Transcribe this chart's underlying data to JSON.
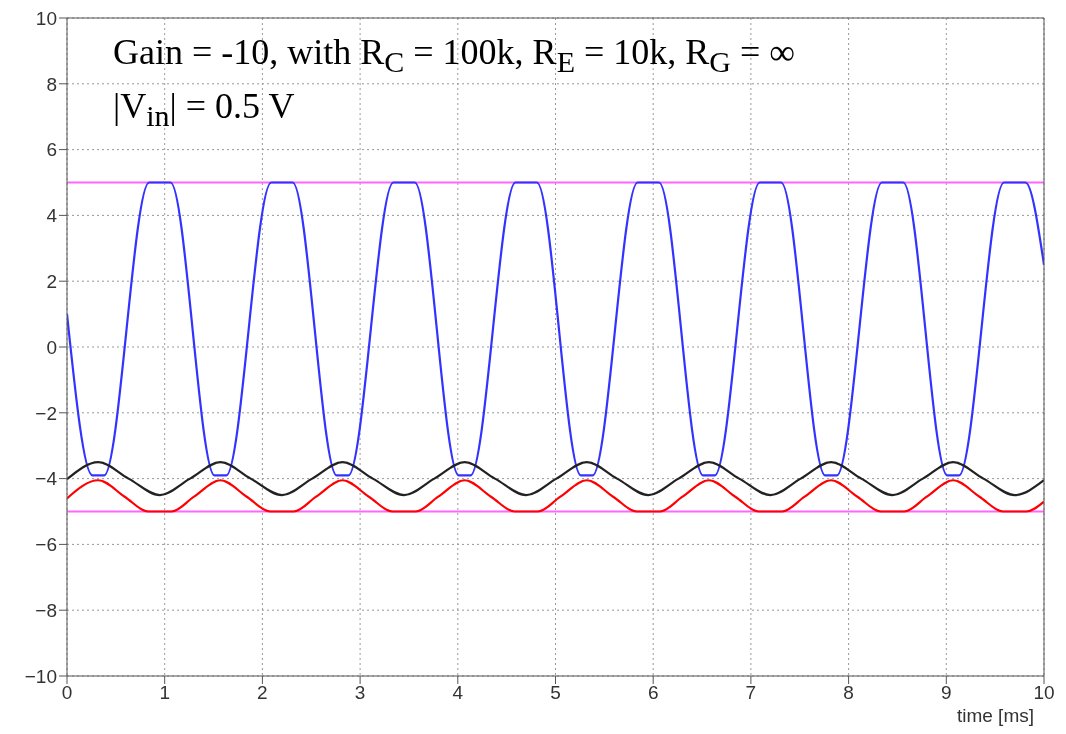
{
  "chart_data": {
    "type": "line",
    "xlabel": "time [ms]",
    "annotations": [
      "Gain = -10, with R$_{C}$ = 100k, R$_{E}$ = 10k, R$_{G}$ = ∞",
      "|V$_{in}$| = 0.5 V"
    ],
    "xlim": [
      0,
      10
    ],
    "xticks": [
      0,
      1,
      2,
      3,
      4,
      5,
      6,
      7,
      8,
      9,
      10
    ],
    "ylim": [
      -10,
      10
    ],
    "yticks": [
      -10,
      -8,
      -6,
      -4,
      -2,
      0,
      2,
      4,
      6,
      8,
      10
    ],
    "grid": true,
    "marker": "none",
    "line_style": "solid",
    "ref_lines": [
      {
        "axis": "y",
        "value": 5,
        "color": "#ff66ff"
      },
      {
        "axis": "y",
        "value": -5,
        "color": "#ff66ff"
      }
    ],
    "series": [
      {
        "color": "#3333ff",
        "x": [
          0,
          0.26,
          0.38,
          0.84,
          1.06,
          1.51,
          1.63,
          2.09,
          2.31,
          2.76,
          2.88,
          3.34,
          3.56,
          4.01,
          4.13,
          4.59,
          4.81,
          5.26,
          5.38,
          5.84,
          6.06,
          6.51,
          6.63,
          7.09,
          7.31,
          7.76,
          7.88,
          8.34,
          8.56,
          9.01,
          9.13,
          9.59,
          9.81,
          10
        ],
        "values": [
          1,
          -3.9,
          -3.9,
          5,
          5,
          -3.9,
          -3.9,
          5,
          5,
          -3.9,
          -3.9,
          5,
          5,
          -3.9,
          -3.9,
          5,
          5,
          -3.9,
          -3.9,
          5,
          5,
          -3.9,
          -3.9,
          5,
          5,
          -3.9,
          -3.9,
          5,
          5,
          -3.9,
          -3.9,
          5,
          5,
          2.5
        ]
      },
      {
        "color": "#222222",
        "x": [
          0,
          0.32,
          0.63,
          0.95,
          1.26,
          1.57,
          1.88,
          2.2,
          2.51,
          2.82,
          3.13,
          3.45,
          3.76,
          4.07,
          4.38,
          4.7,
          5.01,
          5.32,
          5.63,
          5.95,
          6.26,
          6.57,
          6.88,
          7.2,
          7.51,
          7.82,
          8.13,
          8.45,
          8.76,
          9.07,
          9.38,
          9.7,
          10
        ],
        "values": [
          -4.02,
          -3.5,
          -4,
          -4.5,
          -4,
          -3.5,
          -4,
          -4.5,
          -4,
          -3.5,
          -4,
          -4.5,
          -4,
          -3.5,
          -4,
          -4.5,
          -4,
          -3.5,
          -4,
          -4.5,
          -4,
          -3.5,
          -4,
          -4.5,
          -4,
          -3.5,
          -4,
          -4.5,
          -4,
          -3.5,
          -4,
          -4.5,
          -4.05
        ]
      },
      {
        "color": "#ff0000",
        "x": [
          0,
          0.32,
          0.59,
          0.83,
          1.07,
          1.3,
          1.57,
          1.84,
          2.08,
          2.32,
          2.55,
          2.82,
          3.09,
          3.33,
          3.57,
          3.8,
          4.07,
          4.34,
          4.58,
          4.82,
          5.05,
          5.32,
          5.59,
          5.83,
          6.07,
          6.3,
          6.57,
          6.84,
          7.08,
          7.32,
          7.55,
          7.82,
          8.09,
          8.33,
          8.57,
          8.8,
          9.07,
          9.34,
          9.58,
          9.82,
          10
        ],
        "values": [
          -4.6,
          -4.05,
          -4.55,
          -5,
          -5,
          -4.55,
          -4.05,
          -4.55,
          -5,
          -5,
          -4.55,
          -4.05,
          -4.55,
          -5,
          -5,
          -4.55,
          -4.05,
          -4.55,
          -5,
          -5,
          -4.55,
          -4.05,
          -4.55,
          -5,
          -5,
          -4.55,
          -4.05,
          -4.55,
          -5,
          -5,
          -4.55,
          -4.05,
          -4.55,
          -5,
          -5,
          -4.55,
          -4.05,
          -4.55,
          -5,
          -5,
          -4.7
        ]
      }
    ]
  }
}
